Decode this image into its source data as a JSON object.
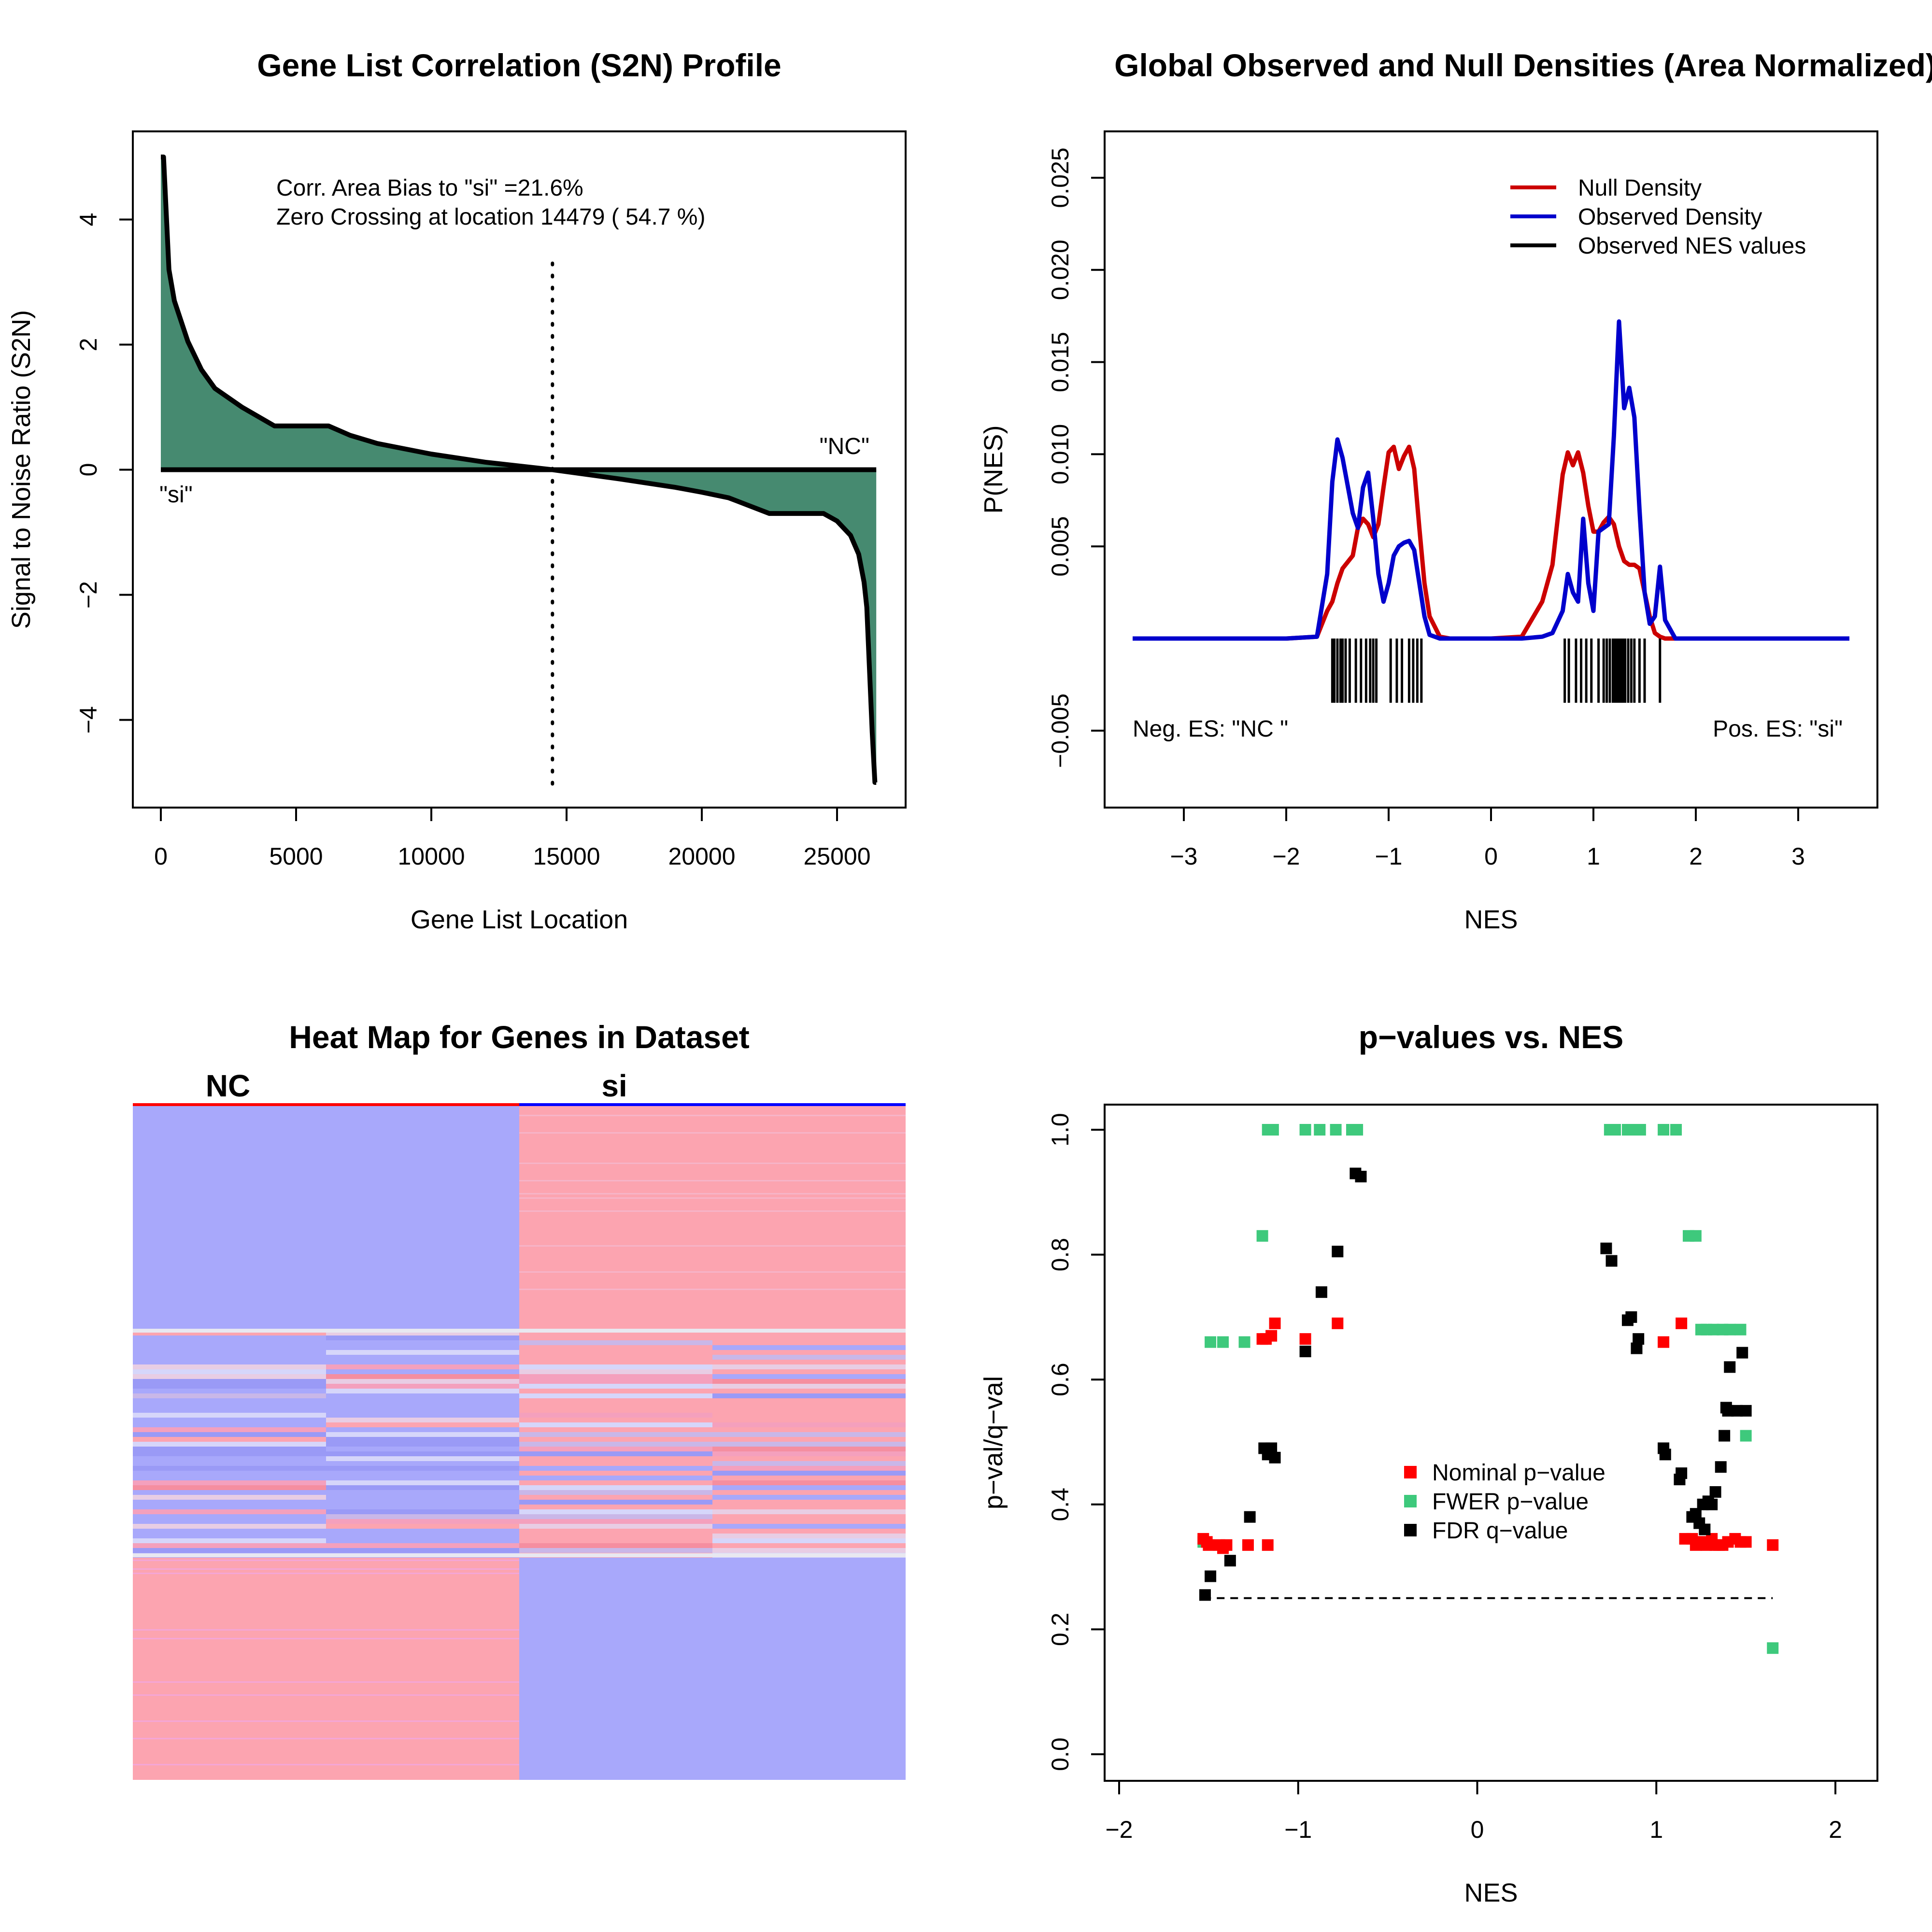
{
  "colors": {
    "area_fill": "#468a70",
    "null_density": "#cc0000",
    "observed_density": "#0000cc",
    "heat_blue": "#a8a8fb",
    "heat_red": "#fca4b0",
    "nominal": "#ff0000",
    "fwer": "#3ec97c",
    "fdr": "#000000"
  },
  "panels": {
    "s2n": {
      "title": "Gene List Correlation (S2N) Profile",
      "xlabel": "Gene List Location",
      "ylabel": "Signal to Noise Ratio (S2N)",
      "note1": "Corr. Area Bias to \"si\" =21.6%",
      "note2": "Zero Crossing at location  14479  ( 54.7  %)",
      "label_left": "\"si\"",
      "label_right": "\"NC\"",
      "xticks": [
        "0",
        "5000",
        "10000",
        "15000",
        "20000",
        "25000"
      ],
      "yticks": [
        "4",
        "2",
        "0",
        "−2",
        "−4"
      ]
    },
    "density": {
      "title": "Global Observed and Null Densities (Area Normalized)",
      "xlabel": "NES",
      "ylabel": "P(NES)",
      "legend": [
        "Null Density",
        "Observed Density",
        "Observed NES values"
      ],
      "neg_label": "Neg. ES: \"NC \"",
      "pos_label": "Pos. ES: \"si\"",
      "xticks": [
        "−3",
        "−2",
        "−1",
        "0",
        "1",
        "2",
        "3"
      ],
      "yticks": [
        "0.025",
        "0.020",
        "0.015",
        "0.010",
        "0.005",
        "−0.005"
      ]
    },
    "heatmap": {
      "title": "Heat Map for Genes in Dataset",
      "label_nc": "NC",
      "label_si": "si"
    },
    "pvalues": {
      "title": "p−values vs. NES",
      "xlabel": "NES",
      "ylabel": "p−val/q−val",
      "legend": [
        "Nominal p−value",
        "FWER p−value",
        "FDR q−value"
      ],
      "xticks": [
        "−2",
        "−1",
        "0",
        "1",
        "2"
      ],
      "yticks": [
        "0.0",
        "0.2",
        "0.4",
        "0.6",
        "0.8",
        "1.0"
      ]
    }
  },
  "chart_data": [
    {
      "type": "area",
      "title": "Gene List Correlation (S2N) Profile",
      "xlabel": "Gene List Location",
      "ylabel": "Signal to Noise Ratio (S2N)",
      "xlim": [
        0,
        26500
      ],
      "ylim": [
        -5,
        5
      ],
      "x": [
        0,
        100,
        300,
        500,
        1000,
        1500,
        2000,
        3000,
        4200,
        6200,
        7000,
        8000,
        10000,
        12000,
        14479,
        17000,
        19000,
        20000,
        21000,
        22500,
        24500,
        25000,
        25500,
        25800,
        26000,
        26100,
        26200,
        26300,
        26400,
        26450
      ],
      "y": [
        5.0,
        5.0,
        3.2,
        2.7,
        2.05,
        1.6,
        1.3,
        1.0,
        0.7,
        0.7,
        0.55,
        0.42,
        0.25,
        0.12,
        0.0,
        -0.15,
        -0.28,
        -0.36,
        -0.45,
        -0.7,
        -0.7,
        -0.82,
        -1.05,
        -1.35,
        -1.8,
        -2.2,
        -3.2,
        -4.2,
        -5.0,
        -5.0
      ],
      "zero_crossing": 14479,
      "grid": false
    },
    {
      "type": "line",
      "title": "Global Observed and Null Densities (Area Normalized)",
      "xlabel": "NES",
      "ylabel": "P(NES)",
      "xlim": [
        -3.5,
        3.5
      ],
      "ylim": [
        -0.005,
        0.025
      ],
      "x": [
        -3.5,
        -2.0,
        -1.7,
        -1.6,
        -1.55,
        -1.5,
        -1.45,
        -1.35,
        -1.3,
        -1.25,
        -1.2,
        -1.15,
        -1.1,
        -1.05,
        -1.0,
        -0.95,
        -0.9,
        -0.85,
        -0.8,
        -0.75,
        -0.7,
        -0.65,
        -0.6,
        -0.5,
        -0.4,
        -0.3,
        0.0,
        0.3,
        0.5,
        0.6,
        0.7,
        0.75,
        0.8,
        0.85,
        0.9,
        0.95,
        1.0,
        1.05,
        1.1,
        1.15,
        1.2,
        1.25,
        1.3,
        1.35,
        1.4,
        1.45,
        1.5,
        1.55,
        1.6,
        1.65,
        1.7,
        1.8,
        2.0,
        3.5
      ],
      "series": [
        {
          "name": "Null Density",
          "values": [
            0,
            0,
            0.0001,
            0.0015,
            0.002,
            0.003,
            0.0038,
            0.0045,
            0.006,
            0.0065,
            0.0062,
            0.0055,
            0.0062,
            0.0082,
            0.0101,
            0.0104,
            0.0092,
            0.0099,
            0.0104,
            0.0092,
            0.006,
            0.003,
            0.0012,
            0.0001,
            0,
            0,
            0,
            0.0001,
            0.002,
            0.004,
            0.0089,
            0.0101,
            0.0094,
            0.0101,
            0.009,
            0.0072,
            0.0058,
            0.0058,
            0.0063,
            0.0066,
            0.0062,
            0.005,
            0.0042,
            0.004,
            0.004,
            0.0038,
            0.0025,
            0.0012,
            0.0003,
            0.0001,
            0,
            0,
            0,
            0
          ]
        },
        {
          "name": "Observed Density",
          "values": [
            0,
            0,
            0.0001,
            0.0035,
            0.0085,
            0.0108,
            0.0098,
            0.0068,
            0.006,
            0.0082,
            0.009,
            0.0065,
            0.0035,
            0.002,
            0.003,
            0.0045,
            0.005,
            0.0052,
            0.0053,
            0.0048,
            0.003,
            0.0012,
            0.0002,
            0,
            0,
            0,
            0,
            0,
            0.0001,
            0.0003,
            0.0015,
            0.0035,
            0.0025,
            0.002,
            0.0065,
            0.003,
            0.0015,
            0.0058,
            0.006,
            0.0062,
            0.011,
            0.0172,
            0.0125,
            0.0136,
            0.012,
            0.007,
            0.0025,
            0.0008,
            0.0012,
            0.0039,
            0.001,
            0,
            0,
            0
          ]
        }
      ],
      "observed_nes_values": [
        -1.55,
        -1.53,
        -1.5,
        -1.47,
        -1.45,
        -1.42,
        -1.38,
        -1.32,
        -1.27,
        -1.22,
        -1.18,
        -1.15,
        -1.12,
        -0.98,
        -0.92,
        -0.87,
        -0.8,
        -0.76,
        -0.72,
        -0.68,
        0.72,
        0.76,
        0.83,
        0.88,
        0.93,
        0.98,
        1.05,
        1.1,
        1.13,
        1.16,
        1.19,
        1.21,
        1.23,
        1.25,
        1.27,
        1.29,
        1.31,
        1.34,
        1.37,
        1.4,
        1.45,
        1.5,
        1.65
      ],
      "grid": false,
      "legend_position": "top-right"
    },
    {
      "type": "heatmap",
      "title": "Heat Map for Genes in Dataset",
      "columns": [
        "NC",
        "NC",
        "si",
        "si"
      ],
      "row_blocks": [
        {
          "rows_fraction": 0.333,
          "values": [
            -1,
            -1,
            1,
            1
          ]
        },
        {
          "rows_fraction": 0.334,
          "values": "mixed"
        },
        {
          "rows_fraction": 0.333,
          "values": [
            1,
            1,
            -1,
            -1
          ]
        }
      ]
    },
    {
      "type": "scatter",
      "title": "p−values vs. NES",
      "xlabel": "NES",
      "ylabel": "p−val/q−val",
      "xlim": [
        -2.1,
        2.1
      ],
      "ylim": [
        -0.04,
        1.04
      ],
      "threshold_line": {
        "y": 0.25,
        "x_from": -1.53,
        "x_to": 1.65
      },
      "series": [
        {
          "name": "Nominal p−value",
          "points": [
            [
              -1.53,
              0.345
            ],
            [
              -1.51,
              0.34
            ],
            [
              -1.5,
              0.335
            ],
            [
              -1.44,
              0.335
            ],
            [
              -1.42,
              0.33
            ],
            [
              -1.4,
              0.335
            ],
            [
              -1.28,
              0.335
            ],
            [
              -1.2,
              0.665
            ],
            [
              -1.18,
              0.665
            ],
            [
              -1.17,
              0.335
            ],
            [
              -1.15,
              0.67
            ],
            [
              -1.13,
              0.69
            ],
            [
              -0.96,
              0.665
            ],
            [
              -0.78,
              0.69
            ],
            [
              1.04,
              0.66
            ],
            [
              1.14,
              0.69
            ],
            [
              1.16,
              0.345
            ],
            [
              1.2,
              0.345
            ],
            [
              1.22,
              0.335
            ],
            [
              1.24,
              0.34
            ],
            [
              1.26,
              0.34
            ],
            [
              1.28,
              0.335
            ],
            [
              1.31,
              0.345
            ],
            [
              1.33,
              0.335
            ],
            [
              1.35,
              0.335
            ],
            [
              1.37,
              0.335
            ],
            [
              1.4,
              0.34
            ],
            [
              1.44,
              0.345
            ],
            [
              1.47,
              0.34
            ],
            [
              1.5,
              0.34
            ],
            [
              1.65,
              0.335
            ]
          ]
        },
        {
          "name": "FWER p−value",
          "points": [
            [
              -1.53,
              0.34
            ],
            [
              -1.49,
              0.66
            ],
            [
              -1.42,
              0.66
            ],
            [
              -1.3,
              0.66
            ],
            [
              -1.2,
              0.83
            ],
            [
              -1.17,
              1.0
            ],
            [
              -1.14,
              1.0
            ],
            [
              -0.96,
              1.0
            ],
            [
              -0.88,
              1.0
            ],
            [
              -0.79,
              1.0
            ],
            [
              -0.7,
              1.0
            ],
            [
              -0.67,
              1.0
            ],
            [
              0.74,
              1.0
            ],
            [
              0.77,
              1.0
            ],
            [
              0.84,
              1.0
            ],
            [
              0.88,
              1.0
            ],
            [
              0.91,
              1.0
            ],
            [
              1.04,
              1.0
            ],
            [
              1.11,
              1.0
            ],
            [
              1.18,
              0.83
            ],
            [
              1.22,
              0.83
            ],
            [
              1.25,
              0.68
            ],
            [
              1.28,
              0.68
            ],
            [
              1.32,
              0.68
            ],
            [
              1.37,
              0.68
            ],
            [
              1.41,
              0.68
            ],
            [
              1.47,
              0.68
            ],
            [
              1.5,
              0.51
            ],
            [
              1.65,
              0.17
            ]
          ]
        },
        {
          "name": "FDR q−value",
          "points": [
            [
              -1.52,
              0.255
            ],
            [
              -1.49,
              0.285
            ],
            [
              -1.38,
              0.31
            ],
            [
              -1.27,
              0.38
            ],
            [
              -1.19,
              0.49
            ],
            [
              -1.17,
              0.48
            ],
            [
              -1.15,
              0.49
            ],
            [
              -1.13,
              0.475
            ],
            [
              -0.96,
              0.645
            ],
            [
              -0.87,
              0.74
            ],
            [
              -0.78,
              0.805
            ],
            [
              -0.68,
              0.93
            ],
            [
              -0.65,
              0.925
            ],
            [
              0.72,
              0.81
            ],
            [
              0.75,
              0.79
            ],
            [
              0.84,
              0.695
            ],
            [
              0.86,
              0.7
            ],
            [
              0.89,
              0.65
            ],
            [
              0.9,
              0.665
            ],
            [
              1.04,
              0.49
            ],
            [
              1.05,
              0.48
            ],
            [
              1.13,
              0.44
            ],
            [
              1.14,
              0.45
            ],
            [
              1.2,
              0.38
            ],
            [
              1.22,
              0.385
            ],
            [
              1.24,
              0.37
            ],
            [
              1.26,
              0.4
            ],
            [
              1.27,
              0.36
            ],
            [
              1.29,
              0.405
            ],
            [
              1.31,
              0.4
            ],
            [
              1.33,
              0.42
            ],
            [
              1.36,
              0.46
            ],
            [
              1.38,
              0.51
            ],
            [
              1.39,
              0.555
            ],
            [
              1.4,
              0.55
            ],
            [
              1.41,
              0.62
            ],
            [
              1.45,
              0.55
            ],
            [
              1.48,
              0.643
            ],
            [
              1.5,
              0.55
            ]
          ]
        }
      ],
      "legend_position": "center-right",
      "grid": false
    }
  ]
}
